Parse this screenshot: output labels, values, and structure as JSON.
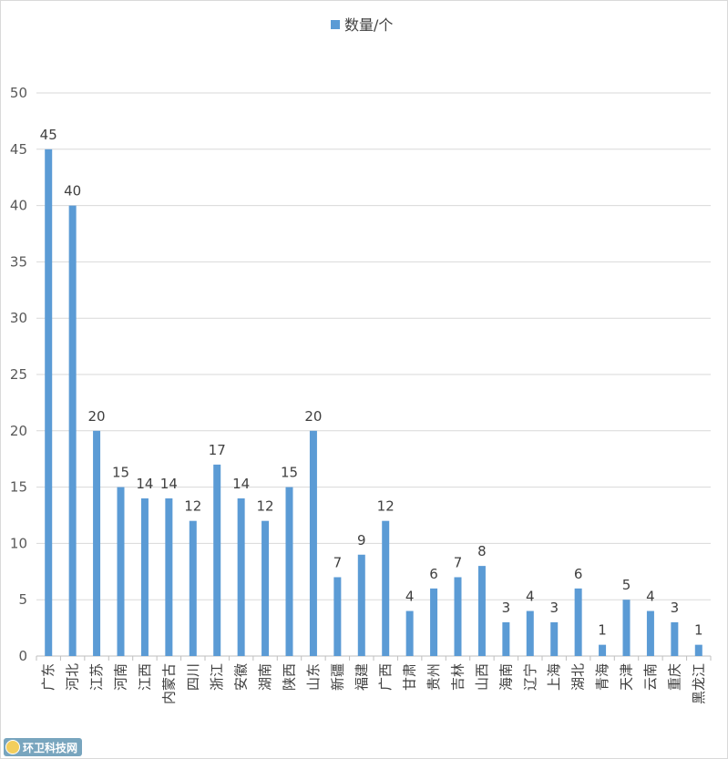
{
  "chart_data": {
    "type": "bar",
    "legend": {
      "position": "top",
      "entries": [
        "数量/个"
      ]
    },
    "series": [
      {
        "name": "数量/个",
        "color": "#5B9BD5",
        "values": [
          45,
          40,
          20,
          15,
          14,
          14,
          12,
          17,
          14,
          12,
          15,
          20,
          7,
          9,
          12,
          4,
          6,
          7,
          8,
          3,
          4,
          3,
          6,
          1,
          5,
          4,
          3,
          1
        ]
      }
    ],
    "categories": [
      "广东",
      "河北",
      "江苏",
      "河南",
      "江西",
      "内蒙古",
      "四川",
      "浙江",
      "安徽",
      "湖南",
      "陕西",
      "山东",
      "新疆",
      "福建",
      "广西",
      "甘肃",
      "贵州",
      "吉林",
      "山西",
      "海南",
      "辽宁",
      "上海",
      "湖北",
      "青海",
      "天津",
      "云南",
      "重庆",
      "黑龙江"
    ],
    "ylim": [
      0,
      50
    ],
    "yticks": [
      0,
      5,
      10,
      15,
      20,
      25,
      30,
      35,
      40,
      45,
      50
    ],
    "grid": true,
    "data_labels": true,
    "title": "",
    "xlabel": "",
    "ylabel": ""
  },
  "watermark": {
    "text": "环卫科技网"
  }
}
